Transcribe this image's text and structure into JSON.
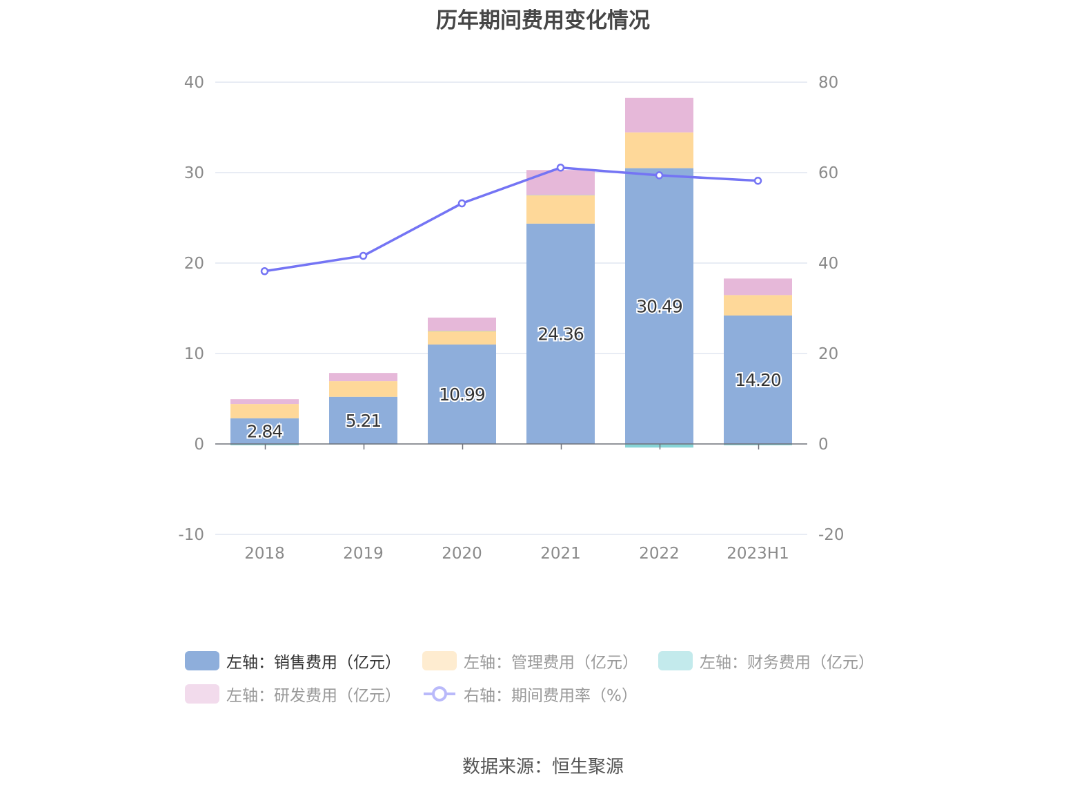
{
  "title": "历年期间费用变化情况",
  "source": "数据来源：恒生聚源",
  "chart_data": {
    "type": "bar",
    "stacked": true,
    "title": "历年期间费用变化情况",
    "categories": [
      "2018",
      "2019",
      "2020",
      "2021",
      "2022",
      "2023H1"
    ],
    "y_left": {
      "range": [
        -10,
        40
      ],
      "ticks": [
        "40",
        "30",
        "20",
        "10",
        "0",
        "-10"
      ]
    },
    "y_right": {
      "range": [
        -20,
        80
      ],
      "ticks": [
        "80",
        "60",
        "40",
        "20",
        "0",
        "-20"
      ]
    },
    "grid": true,
    "legend_position": "bottom",
    "series": [
      {
        "name": "左轴：销售费用（亿元）",
        "type": "bar",
        "axis": "left",
        "color": "#8eaedb",
        "values": [
          2.84,
          5.21,
          10.99,
          24.36,
          30.49,
          14.2
        ],
        "labels": [
          "2.84",
          "5.21",
          "10.99",
          "24.36",
          "30.49",
          "14.20"
        ]
      },
      {
        "name": "左轴：管理费用（亿元）",
        "type": "bar",
        "axis": "left",
        "color": "#fed899",
        "values": [
          1.58,
          1.73,
          1.51,
          3.15,
          3.96,
          2.26
        ]
      },
      {
        "name": "左轴：财务费用（亿元）",
        "type": "bar",
        "axis": "left",
        "color": "#86d4d6",
        "values": [
          -0.15,
          -0.05,
          0.02,
          0.02,
          -0.4,
          -0.15
        ]
      },
      {
        "name": "左轴：研发费用（亿元）",
        "type": "bar",
        "axis": "left",
        "color": "#e6b8d9",
        "values": [
          0.53,
          0.91,
          1.45,
          2.76,
          3.81,
          1.83
        ]
      },
      {
        "name": "右轴：期间费用率（%）",
        "type": "line",
        "axis": "right",
        "color": "#7474f4",
        "values": [
          38.2,
          41.6,
          53.2,
          61.1,
          59.4,
          58.2
        ]
      }
    ]
  },
  "legend_colors_faded": [
    "#8eaedb",
    "#feecd0",
    "#c3eaec",
    "#f2dbec",
    "#b9b9fa"
  ]
}
